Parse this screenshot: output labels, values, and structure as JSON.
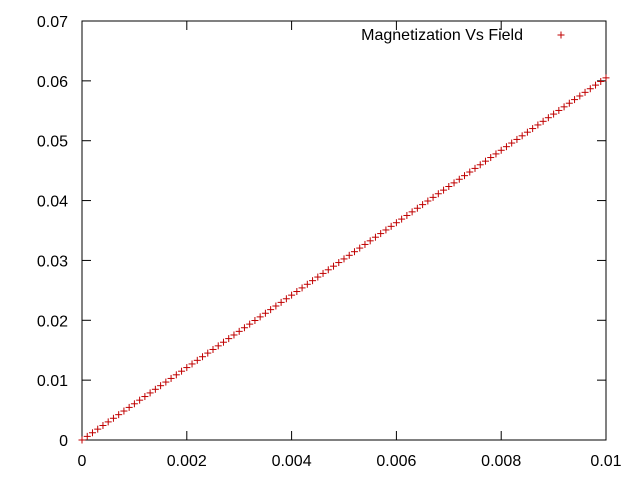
{
  "chart_data": {
    "type": "scatter",
    "title": "",
    "xlabel": "",
    "ylabel": "",
    "xlim": [
      0,
      0.01
    ],
    "ylim": [
      0,
      0.07
    ],
    "x_ticks": [
      "0",
      "0.002",
      "0.004",
      "0.006",
      "0.008",
      "0.01"
    ],
    "y_ticks": [
      "0",
      "0.01",
      "0.02",
      "0.03",
      "0.04",
      "0.05",
      "0.06",
      "0.07"
    ],
    "grid": false,
    "legend_position": "top-right",
    "marker": "plus",
    "series": [
      {
        "name": "Magnetization Vs Field",
        "color": "#c00000",
        "x_start": 0,
        "x_end": 0.01,
        "x_step": 0.0001,
        "y_start": 0,
        "y_end": 0.0605
      }
    ]
  }
}
